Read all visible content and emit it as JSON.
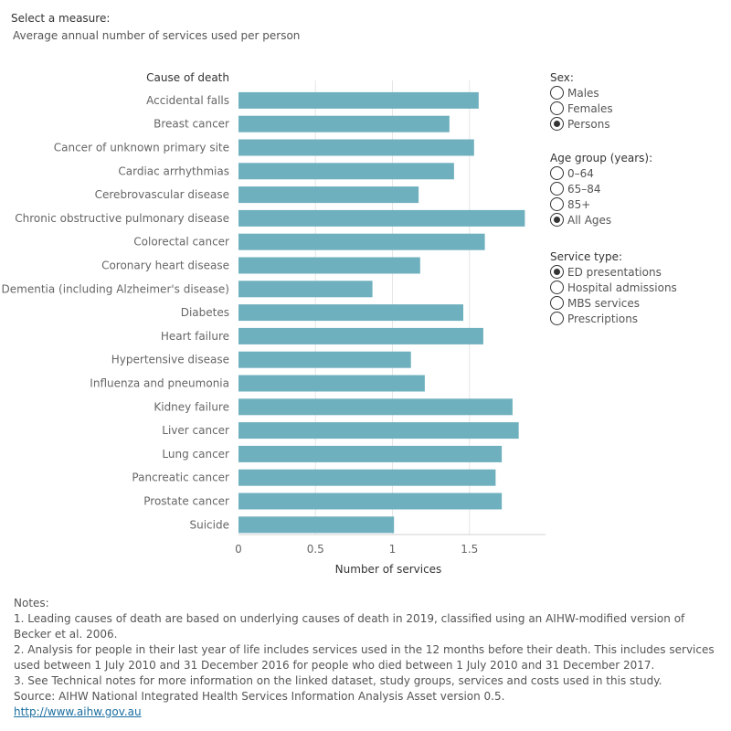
{
  "measure": {
    "label": "Select a measure:",
    "value": "Average annual number of services used per person"
  },
  "filters": {
    "sex": {
      "title": "Sex:",
      "options": [
        "Males",
        "Females",
        "Persons"
      ],
      "selected": "Persons"
    },
    "age": {
      "title": "Age group (years):",
      "options": [
        "0–64",
        "65–84",
        "85+",
        "All Ages"
      ],
      "selected": "All Ages"
    },
    "service": {
      "title": "Service type:",
      "options": [
        "ED presentations",
        "Hospital admissions",
        "MBS services",
        "Prescriptions"
      ],
      "selected": "ED presentations"
    }
  },
  "colors": {
    "bar": "#6fb0be",
    "grid": "#e6e6e6",
    "axis": "#d0d0d0"
  },
  "chart_data": {
    "type": "bar",
    "orientation": "horizontal",
    "category_header": "Cause of death",
    "xlabel": "Number of services",
    "xlim": [
      0,
      2
    ],
    "xticks": [
      0,
      0.5,
      1,
      1.5
    ],
    "xtick_labels": [
      "0",
      "0.5",
      "1",
      "1.5"
    ],
    "grid": true,
    "categories": [
      "Accidental falls",
      "Breast cancer",
      "Cancer of unknown primary site",
      "Cardiac arrhythmias",
      "Cerebrovascular disease",
      "Chronic obstructive pulmonary disease",
      "Colorectal cancer",
      "Coronary heart disease",
      "Dementia (including Alzheimer's disease)",
      "Diabetes",
      "Heart failure",
      "Hypertensive disease",
      "Influenza and pneumonia",
      "Kidney failure",
      "Liver cancer",
      "Lung cancer",
      "Pancreatic cancer",
      "Prostate cancer",
      "Suicide"
    ],
    "values": [
      1.56,
      1.37,
      1.53,
      1.4,
      1.17,
      1.86,
      1.6,
      1.18,
      0.87,
      1.46,
      1.59,
      1.12,
      1.21,
      1.78,
      1.82,
      1.71,
      1.67,
      1.71,
      1.01
    ]
  },
  "notes": {
    "heading": "Notes:",
    "items": [
      "1. Leading causes of death are based on underlying causes of death in 2019, classified using an AIHW-modified version of Becker et al. 2006.",
      "2. Analysis for people in their last year of life includes services used in the 12 months before their death. This includes services used between 1 July 2010 and 31 December 2016 for people who died between 1 July 2010 and 31 December 2017.",
      "3. See Technical notes for more information on the linked dataset, study groups, services and costs used in this study."
    ],
    "source": "Source: AIHW National Integrated Health Services Information Analysis Asset version 0.5.",
    "link": "http://www.aihw.gov.au"
  }
}
